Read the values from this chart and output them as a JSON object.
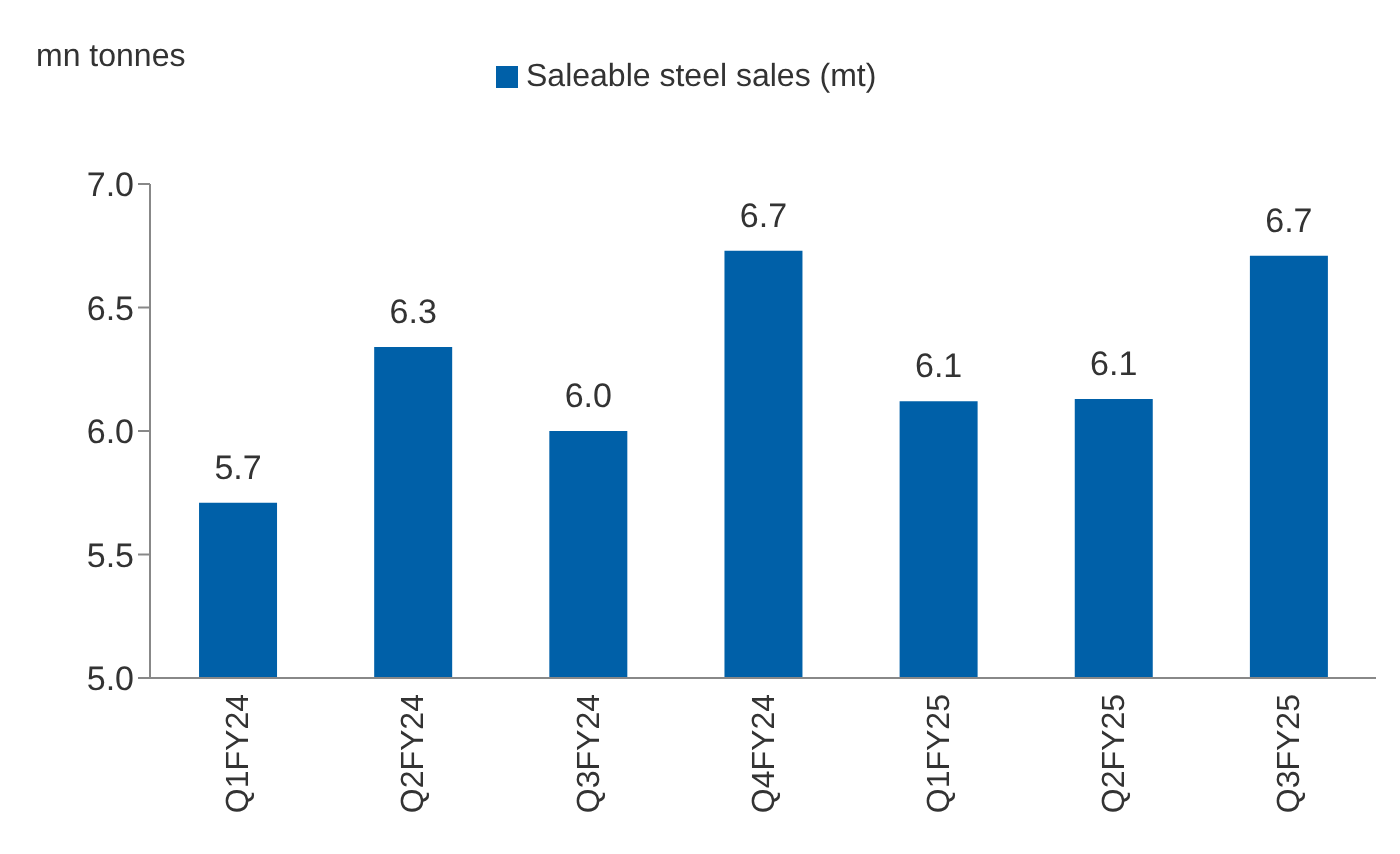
{
  "chart_data": {
    "type": "bar",
    "ylabel": "mn tonnes",
    "categories": [
      "Q1FY24",
      "Q2FY24",
      "Q3FY24",
      "Q4FY24",
      "Q1FY25",
      "Q2FY25",
      "Q3FY25"
    ],
    "series": [
      {
        "name": "Saleable steel sales (mt)",
        "color": "#0060a8",
        "values": [
          5.71,
          6.34,
          6.0,
          6.73,
          6.12,
          6.13,
          6.71
        ],
        "value_labels": [
          "5.7",
          "6.3",
          "6.0",
          "6.7",
          "6.1",
          "6.1",
          "6.7"
        ]
      }
    ],
    "ylim": [
      5.0,
      7.0
    ],
    "yticks": [
      {
        "value": 5.0,
        "label": "5.0"
      },
      {
        "value": 5.5,
        "label": "5.5"
      },
      {
        "value": 6.0,
        "label": "6.0"
      },
      {
        "value": 6.5,
        "label": "6.5"
      },
      {
        "value": 7.0,
        "label": "7.0"
      }
    ],
    "grid": false,
    "legend": "top"
  }
}
